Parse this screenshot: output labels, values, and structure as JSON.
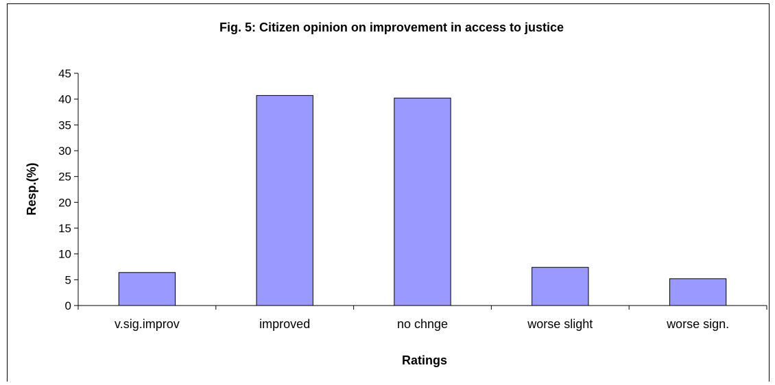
{
  "chart_data": {
    "type": "bar",
    "title": "Fig. 5: Citizen opinion on improvement in access to justice",
    "xlabel": "Ratings",
    "ylabel": "Resp.(%)",
    "categories": [
      "v.sig.improv",
      "improved",
      "no chnge",
      "worse slight",
      "worse sign."
    ],
    "values": [
      6.4,
      40.7,
      40.2,
      7.4,
      5.2
    ],
    "ylim": [
      0,
      45
    ],
    "yticks": [
      0,
      5,
      10,
      15,
      20,
      25,
      30,
      35,
      40,
      45
    ],
    "grid": false,
    "legend": "none",
    "bar_color": "#9999ff"
  }
}
